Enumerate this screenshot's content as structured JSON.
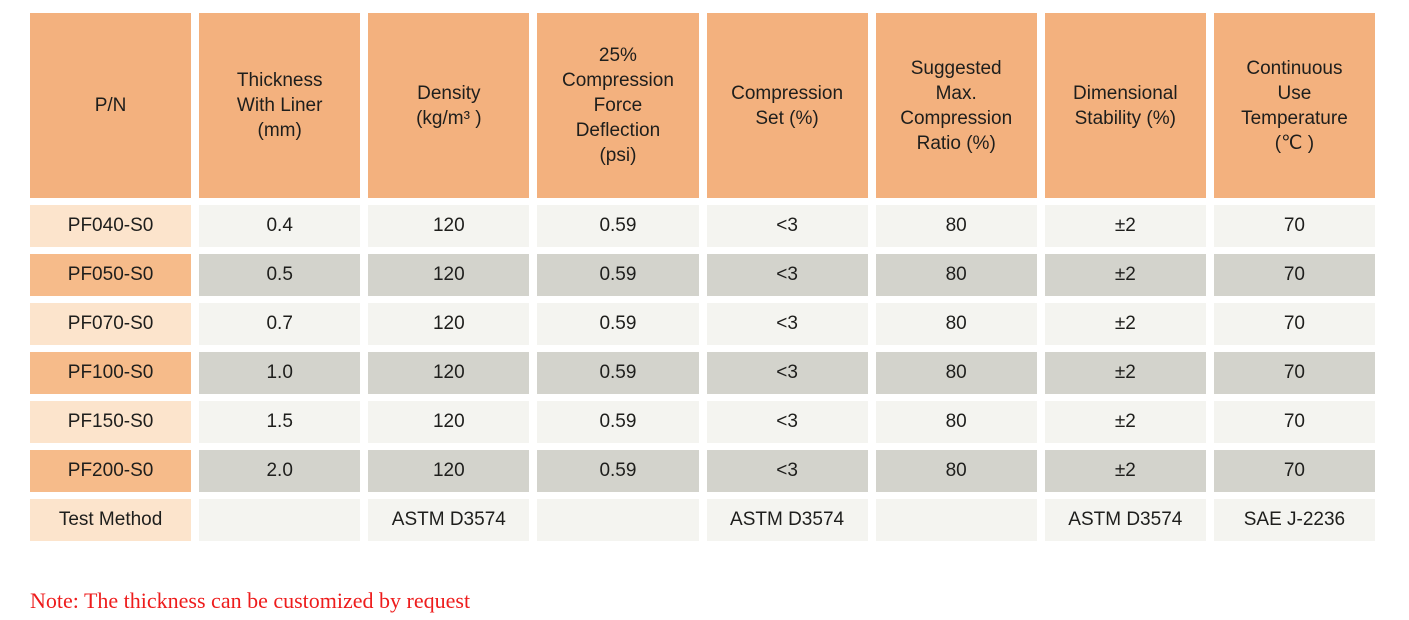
{
  "colors": {
    "header_bg": "#F3B17E",
    "label_light": "#FCE4CC",
    "label_dark": "#F6BB8A",
    "cell_light": "#F4F4F0",
    "cell_dark": "#D3D3CC",
    "note_red": "#EE1C1C",
    "text": "#1E1E1C"
  },
  "table": {
    "columns": [
      {
        "key": "pn",
        "label": "P/N"
      },
      {
        "key": "thickness-with-liner",
        "label": "Thickness\nWith Liner\n(mm)"
      },
      {
        "key": "density",
        "label": "Density\n(kg/m³ )"
      },
      {
        "key": "compression-force-deflection",
        "label": "25%\nCompression\nForce\nDeflection\n(psi)"
      },
      {
        "key": "compression-set",
        "label": "Compression\nSet (%)"
      },
      {
        "key": "suggested-max-compression-ratio",
        "label": "Suggested\nMax.\nCompression\nRatio (%)"
      },
      {
        "key": "dimensional-stability",
        "label": "Dimensional\nStability (%)"
      },
      {
        "key": "continuous-use-temperature",
        "label": "Continuous\nUse\nTemperature\n(℃ )"
      }
    ],
    "rows": [
      {
        "shade": "light",
        "cells": [
          "PF040-S0",
          "0.4",
          "120",
          "0.59",
          "<3",
          "80",
          "±2",
          "70"
        ]
      },
      {
        "shade": "dark",
        "cells": [
          "PF050-S0",
          "0.5",
          "120",
          "0.59",
          "<3",
          "80",
          "±2",
          "70"
        ]
      },
      {
        "shade": "light",
        "cells": [
          "PF070-S0",
          "0.7",
          "120",
          "0.59",
          "<3",
          "80",
          "±2",
          "70"
        ]
      },
      {
        "shade": "dark",
        "cells": [
          "PF100-S0",
          "1.0",
          "120",
          "0.59",
          "<3",
          "80",
          "±2",
          "70"
        ]
      },
      {
        "shade": "light",
        "cells": [
          "PF150-S0",
          "1.5",
          "120",
          "0.59",
          "<3",
          "80",
          "±2",
          "70"
        ]
      },
      {
        "shade": "dark",
        "cells": [
          "PF200-S0",
          "2.0",
          "120",
          "0.59",
          "<3",
          "80",
          "±2",
          "70"
        ]
      }
    ],
    "footer_row": {
      "shade": "light",
      "cells": [
        "Test Method",
        "",
        "ASTM D3574",
        "",
        "ASTM D3574",
        "",
        "ASTM D3574",
        "SAE J-2236"
      ]
    }
  },
  "note": {
    "text": "Note: The thickness can be customized by request"
  }
}
